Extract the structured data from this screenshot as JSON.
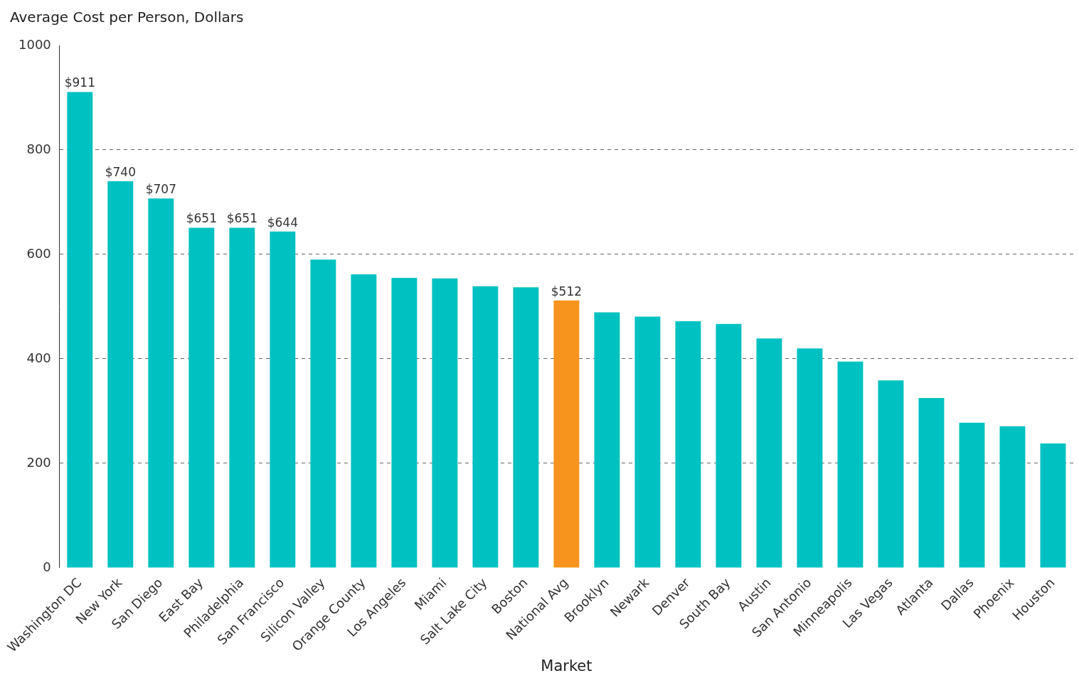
{
  "chart_data": {
    "type": "bar",
    "title": "Average Cost per Person, Dollars",
    "x_label": "Market",
    "categories": [
      "Washington DC",
      "New York",
      "San Diego",
      "East Bay",
      "Philadelphia",
      "San Francisco",
      "Silicon Valley",
      "Orange County",
      "Los Angeles",
      "Miami",
      "Salt Lake City",
      "Boston",
      "National Avg",
      "Brooklyn",
      "Newark",
      "Denver",
      "South Bay",
      "Austin",
      "San Antonio",
      "Minneapolis",
      "Las Vegas",
      "Atlanta",
      "Dallas",
      "Phoenix",
      "Houston"
    ],
    "values": [
      911,
      740,
      707,
      651,
      651,
      644,
      590,
      562,
      555,
      554,
      539,
      537,
      512,
      489,
      481,
      472,
      467,
      439,
      420,
      395,
      359,
      325,
      278,
      271,
      238
    ],
    "value_labels": [
      "$911",
      "$740",
      "$707",
      "$651",
      "$651",
      "$644",
      null,
      null,
      null,
      null,
      null,
      null,
      "$512",
      null,
      null,
      null,
      null,
      null,
      null,
      null,
      null,
      null,
      null,
      null,
      null
    ],
    "data_labels": true,
    "colors": [
      "#00c1c1",
      "#00c1c1",
      "#00c1c1",
      "#00c1c1",
      "#00c1c1",
      "#00c1c1",
      "#00c1c1",
      "#00c1c1",
      "#00c1c1",
      "#00c1c1",
      "#00c1c1",
      "#00c1c1",
      "#f7941d",
      "#00c1c1",
      "#00c1c1",
      "#00c1c1",
      "#00c1c1",
      "#00c1c1",
      "#00c1c1",
      "#00c1c1",
      "#00c1c1",
      "#00c1c1",
      "#00c1c1",
      "#00c1c1",
      "#00c1c1"
    ],
    "ylim": [
      0,
      1000
    ],
    "yticks": [
      0,
      200,
      400,
      600,
      800,
      1000
    ],
    "grid": true
  }
}
